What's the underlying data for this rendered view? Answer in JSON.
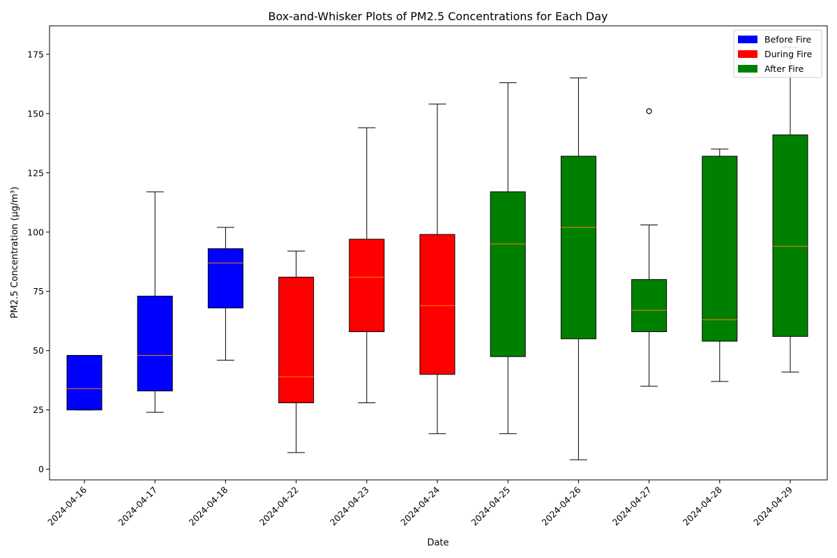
{
  "chart_data": {
    "type": "box",
    "title": "Box-and-Whisker Plots of PM2.5 Concentrations for Each Day",
    "xlabel": "Date",
    "ylabel": "PM2.5 Concentration (µg/m³)",
    "ylim": [
      -4.5,
      187
    ],
    "yticks": [
      0,
      25,
      50,
      75,
      100,
      125,
      150,
      175
    ],
    "grid": false,
    "legend_position": "top-right",
    "colors": {
      "Before Fire": "#0000ff",
      "During Fire": "#ff0000",
      "After Fire": "#008000",
      "median": "#ff7f0e"
    },
    "legend": [
      {
        "label": "Before Fire",
        "color": "#0000ff"
      },
      {
        "label": "During Fire",
        "color": "#ff0000"
      },
      {
        "label": "After Fire",
        "color": "#008000"
      }
    ],
    "categories": [
      "2024-04-16",
      "2024-04-17",
      "2024-04-18",
      "2024-04-22",
      "2024-04-23",
      "2024-04-24",
      "2024-04-25",
      "2024-04-26",
      "2024-04-27",
      "2024-04-28",
      "2024-04-29"
    ],
    "boxes": [
      {
        "category": "2024-04-16",
        "group": "Before Fire",
        "whisker_low": 25,
        "q1": 25,
        "median": 34,
        "q3": 48,
        "whisker_high": 48,
        "outliers": []
      },
      {
        "category": "2024-04-17",
        "group": "Before Fire",
        "whisker_low": 24,
        "q1": 33,
        "median": 48,
        "q3": 73,
        "whisker_high": 117,
        "outliers": []
      },
      {
        "category": "2024-04-18",
        "group": "Before Fire",
        "whisker_low": 46,
        "q1": 68,
        "median": 87,
        "q3": 93,
        "whisker_high": 102,
        "outliers": []
      },
      {
        "category": "2024-04-22",
        "group": "During Fire",
        "whisker_low": 7,
        "q1": 28,
        "median": 39,
        "q3": 81,
        "whisker_high": 92,
        "outliers": []
      },
      {
        "category": "2024-04-23",
        "group": "During Fire",
        "whisker_low": 28,
        "q1": 58,
        "median": 81,
        "q3": 97,
        "whisker_high": 144,
        "outliers": []
      },
      {
        "category": "2024-04-24",
        "group": "During Fire",
        "whisker_low": 15,
        "q1": 40,
        "median": 69,
        "q3": 99,
        "whisker_high": 154,
        "outliers": []
      },
      {
        "category": "2024-04-25",
        "group": "After Fire",
        "whisker_low": 15,
        "q1": 47.5,
        "median": 95,
        "q3": 117,
        "whisker_high": 163,
        "outliers": []
      },
      {
        "category": "2024-04-26",
        "group": "After Fire",
        "whisker_low": 4,
        "q1": 55,
        "median": 102,
        "q3": 132,
        "whisker_high": 165,
        "outliers": []
      },
      {
        "category": "2024-04-27",
        "group": "After Fire",
        "whisker_low": 35,
        "q1": 58,
        "median": 67,
        "q3": 80,
        "whisker_high": 103,
        "outliers": [
          151
        ]
      },
      {
        "category": "2024-04-28",
        "group": "After Fire",
        "whisker_low": 37,
        "q1": 54,
        "median": 63,
        "q3": 132,
        "whisker_high": 135,
        "outliers": []
      },
      {
        "category": "2024-04-29",
        "group": "After Fire",
        "whisker_low": 41,
        "q1": 56,
        "median": 94,
        "q3": 141,
        "whisker_high": 178,
        "outliers": []
      }
    ]
  }
}
